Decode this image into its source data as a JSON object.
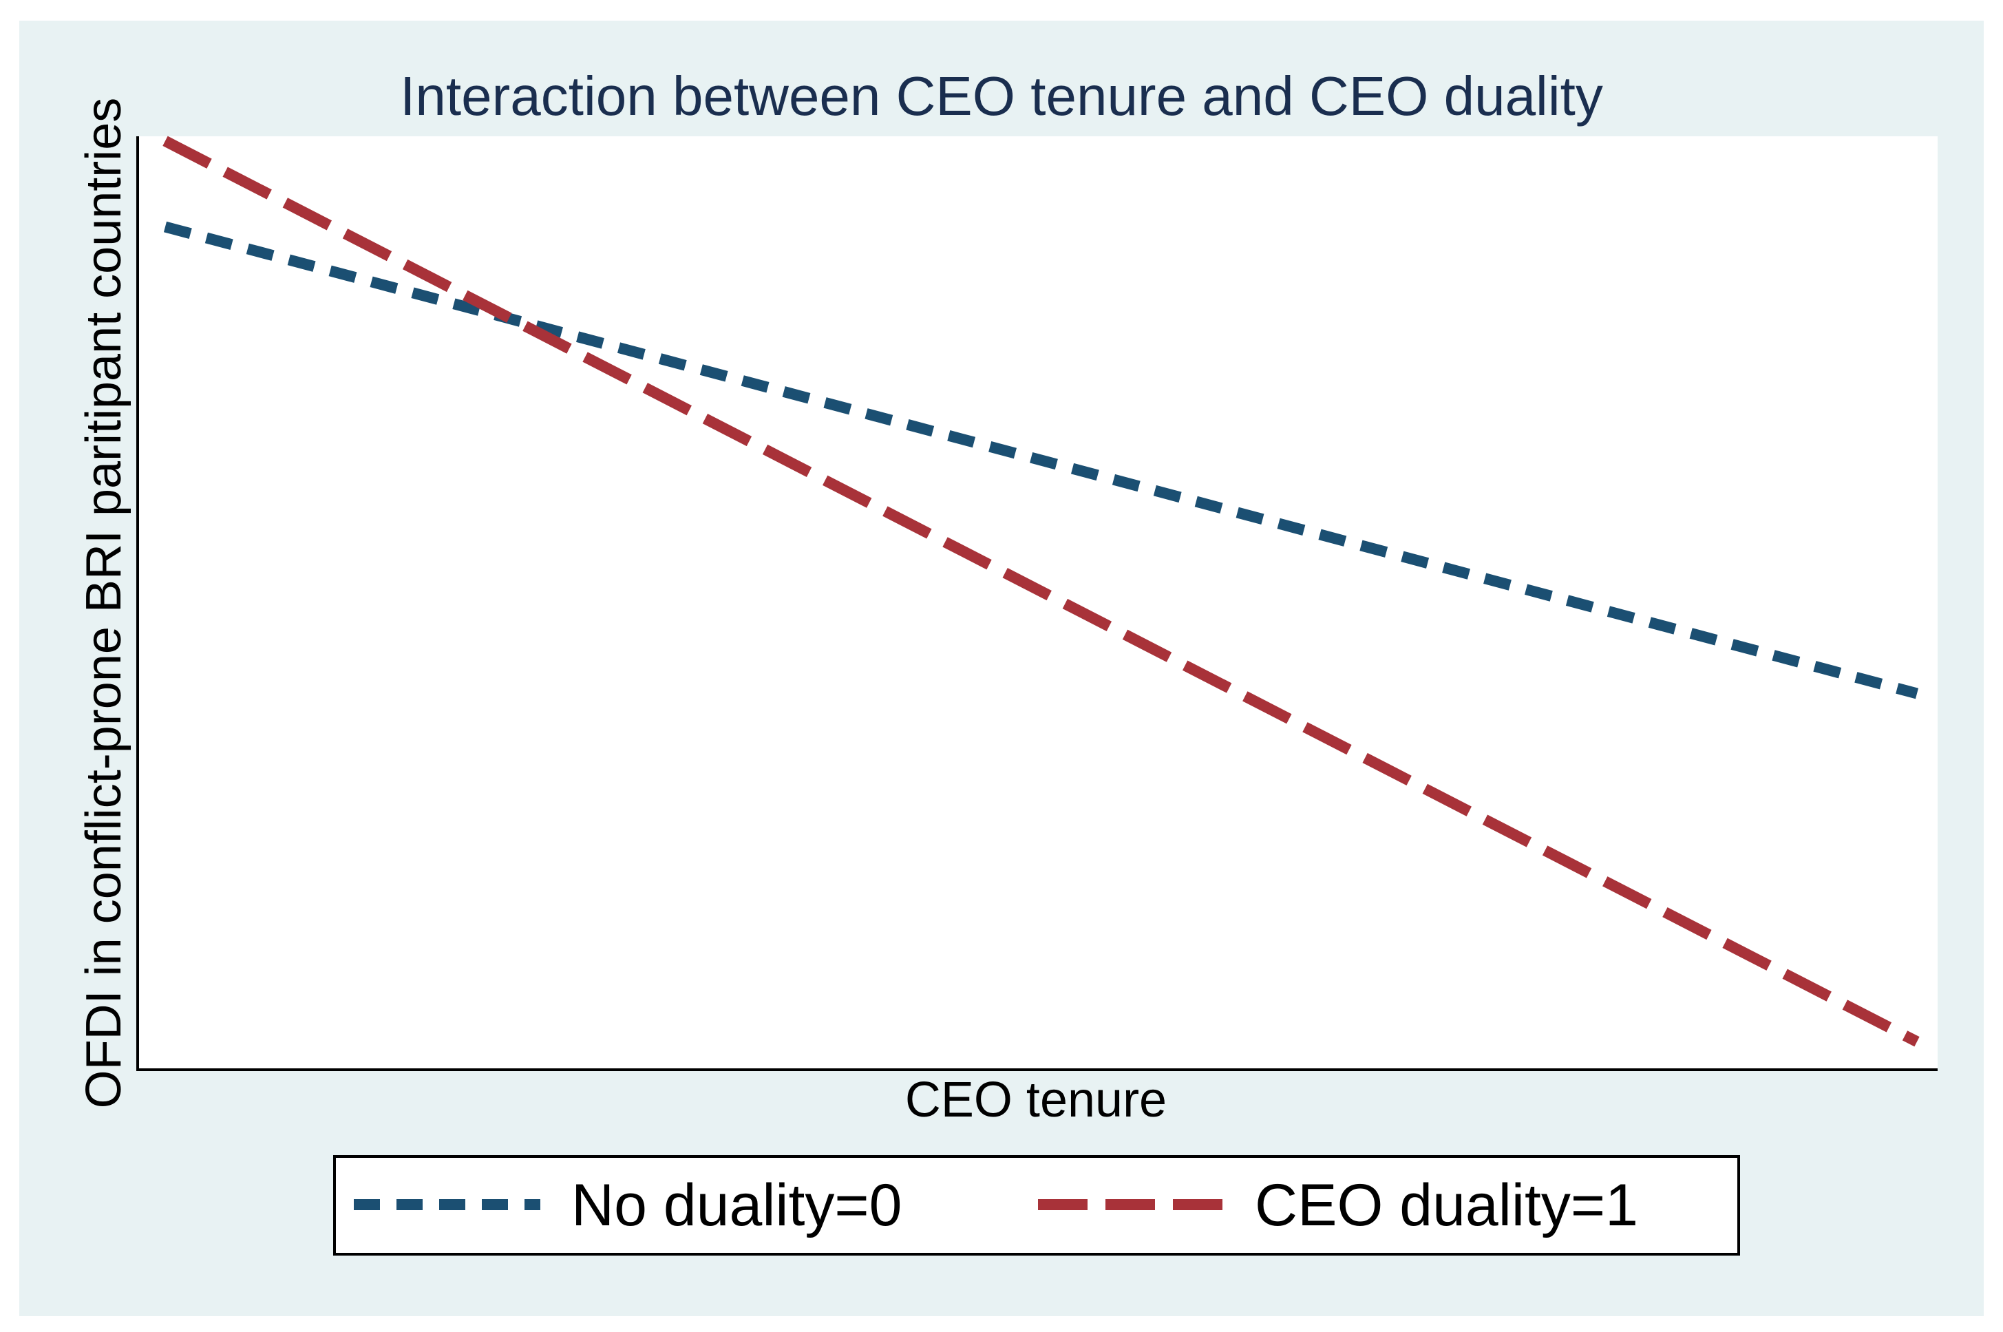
{
  "chart_data": {
    "type": "line",
    "title": "Interaction between CEO tenure and CEO duality",
    "xlabel": "CEO tenure",
    "ylabel": "OFDI in conflict-prone BRI paritipant countries",
    "x": [
      0,
      1
    ],
    "xlim": [
      0,
      1
    ],
    "ylim": [
      0,
      1
    ],
    "grid": false,
    "legend_position": "bottom",
    "series": [
      {
        "name": "No duality=0",
        "values": [
          0.903,
          0.403
        ],
        "color": "#1b4f72",
        "line_style": "short-dash"
      },
      {
        "name": "CEO duality=1",
        "values": [
          0.995,
          0.03
        ],
        "color": "#a83239",
        "line_style": "long-dash"
      }
    ]
  },
  "colors": {
    "outer_background": "#e8f2f3",
    "plot_background": "#ffffff",
    "title": "#1a2e4f",
    "axis": "#000000"
  }
}
